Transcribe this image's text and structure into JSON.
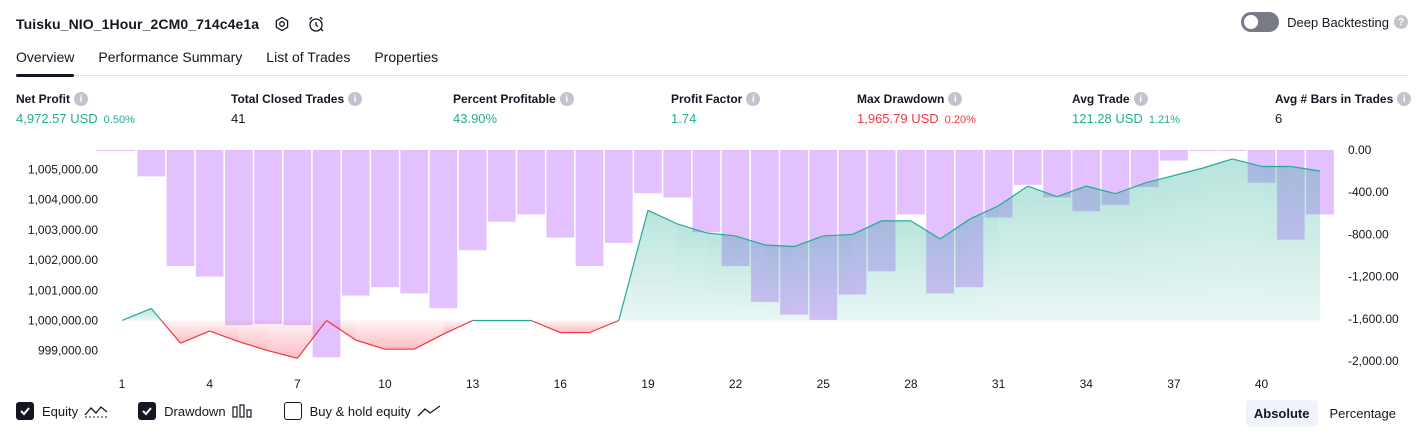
{
  "header": {
    "title": "Tuisku_NIO_1Hour_2CM0_714c4e1a",
    "icons": [
      "settings-icon",
      "alarm-clock-icon"
    ]
  },
  "deep_backtesting": {
    "label": "Deep Backtesting",
    "enabled": false
  },
  "tabs": [
    {
      "label": "Overview",
      "active": true
    },
    {
      "label": "Performance Summary",
      "active": false
    },
    {
      "label": "List of Trades",
      "active": false
    },
    {
      "label": "Properties",
      "active": false
    }
  ],
  "metrics": {
    "net_profit": {
      "label": "Net Profit",
      "value": "4,972.57 USD",
      "pct": "0.50%"
    },
    "total_closed_trades": {
      "label": "Total Closed Trades",
      "value": "41"
    },
    "percent_profitable": {
      "label": "Percent Profitable",
      "value": "43.90%"
    },
    "profit_factor": {
      "label": "Profit Factor",
      "value": "1.74"
    },
    "max_drawdown": {
      "label": "Max Drawdown",
      "value": "1,965.79 USD",
      "pct": "0.20%"
    },
    "avg_trade": {
      "label": "Avg Trade",
      "value": "121.28 USD",
      "pct": "1.21%"
    },
    "avg_bars": {
      "label": "Avg # Bars in Trades",
      "value": "6"
    }
  },
  "colors": {
    "green": "#22ab94",
    "red": "#f23645",
    "drawdown_bar": "#c57dff",
    "text": "#131722",
    "axis_text": "#131722"
  },
  "chart_data": {
    "type": "area",
    "x": [
      1,
      2,
      3,
      4,
      5,
      6,
      7,
      8,
      9,
      10,
      11,
      12,
      13,
      14,
      15,
      16,
      17,
      18,
      19,
      20,
      21,
      22,
      23,
      24,
      25,
      26,
      27,
      28,
      29,
      30,
      31,
      32,
      33,
      34,
      35,
      36,
      37,
      38,
      39,
      40,
      41,
      42
    ],
    "x_ticks": [
      "1",
      "4",
      "7",
      "10",
      "13",
      "16",
      "19",
      "22",
      "25",
      "28",
      "31",
      "34",
      "37",
      "40"
    ],
    "left_axis": {
      "ticks": [
        "1,005,000.00",
        "1,004,000.00",
        "1,003,000.00",
        "1,002,000.00",
        "1,001,000.00",
        "1,000,000.00",
        "999,000.00"
      ],
      "ylim": [
        998500,
        1005500
      ]
    },
    "right_axis": {
      "ticks": [
        "0.00",
        "-400.00",
        "-800.00",
        "-1,200.00",
        "-1,600.00",
        "-2,000.00"
      ],
      "ylim": [
        -2000,
        0
      ]
    },
    "series": [
      {
        "name": "Equity",
        "axis": "left",
        "baseline": 1000000,
        "values": [
          1000000,
          1000400,
          999250,
          999650,
          999300,
          999000,
          998750,
          1000000,
          999350,
          999050,
          999050,
          999550,
          1000000,
          1000000,
          1000000,
          999600,
          999600,
          1000000,
          1003650,
          1003200,
          1002900,
          1002800,
          1002500,
          1002450,
          1002800,
          1002850,
          1003300,
          1003300,
          1002700,
          1003350,
          1003800,
          1004450,
          1004100,
          1004450,
          1004200,
          1004550,
          1004800,
          1005050,
          1005350,
          1005100,
          1005100,
          1004950
        ]
      },
      {
        "name": "Drawdown",
        "axis": "right",
        "values": [
          0,
          -250,
          -1100,
          -1200,
          -1660,
          -1650,
          -1660,
          -1965,
          -1380,
          -1300,
          -1360,
          -1500,
          -950,
          -680,
          -610,
          -830,
          -1100,
          -880,
          -410,
          -450,
          -780,
          -1100,
          -1440,
          -1560,
          -1610,
          -1370,
          -1150,
          -610,
          -1360,
          -1300,
          -640,
          -330,
          -450,
          -580,
          -520,
          -350,
          -100,
          0,
          0,
          -310,
          -850,
          -610
        ]
      }
    ]
  },
  "legend": [
    {
      "label": "Equity",
      "checked": true,
      "icon": "equity-line-icon"
    },
    {
      "label": "Drawdown",
      "checked": true,
      "icon": "drawdown-bars-icon"
    },
    {
      "label": "Buy & hold equity",
      "checked": false,
      "icon": "buy-hold-line-icon"
    }
  ],
  "mode": {
    "options": [
      "Absolute",
      "Percentage"
    ],
    "selected": "Absolute"
  }
}
